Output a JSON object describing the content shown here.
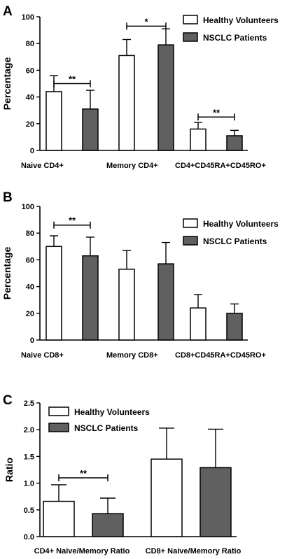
{
  "colors": {
    "healthy": "#ffffff",
    "nsclc": "#606060",
    "stroke": "#000000"
  },
  "chart_data": [
    {
      "type": "bar",
      "panel": "A",
      "ylabel": "Percentage",
      "ylim": [
        0,
        100
      ],
      "yticks": [
        0,
        20,
        40,
        60,
        80,
        100
      ],
      "categories": [
        "Naive CD4+",
        "Memory CD4+",
        "CD4+CD45RA+CD45RO+"
      ],
      "series": [
        {
          "name": "Healthy Volunteers",
          "values": [
            44,
            71,
            16
          ],
          "errors": [
            12,
            12,
            5
          ]
        },
        {
          "name": "NSCLC Patients",
          "values": [
            31,
            79,
            11
          ],
          "errors": [
            14,
            12,
            4
          ]
        }
      ],
      "significance": [
        {
          "category": 0,
          "label": "**",
          "y": 50
        },
        {
          "category": 1,
          "label": "*",
          "y": 93
        },
        {
          "category": 2,
          "label": "**",
          "y": 25
        }
      ],
      "legend": "top-right"
    },
    {
      "type": "bar",
      "panel": "B",
      "ylabel": "Percentage",
      "ylim": [
        0,
        100
      ],
      "yticks": [
        0,
        20,
        40,
        60,
        80,
        100
      ],
      "categories": [
        "Naive CD8+",
        "Memory CD8+",
        "CD8+CD45RA+CD45RO+"
      ],
      "series": [
        {
          "name": "Healthy Volunteers",
          "values": [
            70,
            53,
            24
          ],
          "errors": [
            8,
            14,
            10
          ]
        },
        {
          "name": "NSCLC Patients",
          "values": [
            63,
            57,
            20
          ],
          "errors": [
            14,
            16,
            7
          ]
        }
      ],
      "significance": [
        {
          "category": 0,
          "label": "**",
          "y": 86
        }
      ],
      "legend": "top-right"
    },
    {
      "type": "bar",
      "panel": "C",
      "ylabel": "Ratio",
      "ylim": [
        0,
        2.5
      ],
      "yticks": [
        "0.0",
        "0.5",
        "1.0",
        "1.5",
        "2.0",
        "2.5"
      ],
      "categories": [
        "CD4+ Naive/Memory Ratio",
        "CD8+ Naive/Memory Ratio"
      ],
      "series": [
        {
          "name": "Healthy Volunteers",
          "values": [
            0.66,
            1.45
          ],
          "errors": [
            0.31,
            0.58
          ]
        },
        {
          "name": "NSCLC Patients",
          "values": [
            0.43,
            1.29
          ],
          "errors": [
            0.29,
            0.72
          ]
        }
      ],
      "significance": [
        {
          "category": 0,
          "label": "**",
          "y": 1.1
        }
      ],
      "legend": "top-left"
    }
  ]
}
